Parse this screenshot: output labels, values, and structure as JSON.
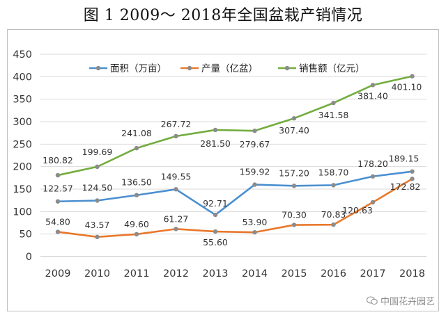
{
  "title": "图 1  2009～ 2018年全国盆栽产销情况",
  "watermark": "中国花卉园艺",
  "chart_data": {
    "type": "line",
    "title": "图 1  2009～ 2018年全国盆栽产销情况",
    "categories": [
      "2009",
      "2010",
      "2011",
      "2012",
      "2013",
      "2014",
      "2015",
      "2016",
      "2017",
      "2018"
    ],
    "ylim": [
      0,
      450
    ],
    "yticks": [
      0,
      50,
      100,
      150,
      200,
      250,
      300,
      350,
      400,
      450
    ],
    "grid": true,
    "legend": "top",
    "series": [
      {
        "name": "面积（万亩）",
        "color": "#4a8fd0",
        "values": [
          122.57,
          124.5,
          136.5,
          149.55,
          92.71,
          159.92,
          157.2,
          158.7,
          178.2,
          189.15
        ],
        "labels": [
          "122.57",
          "124.50",
          "136.50",
          "149.55",
          "92.71",
          "159.92",
          "157.20",
          "158.70",
          "178.20",
          "189.15"
        ]
      },
      {
        "name": "产量（亿盆）",
        "color": "#e9782b",
        "values": [
          54.8,
          43.57,
          49.6,
          61.27,
          55.6,
          53.9,
          70.3,
          70.83,
          120.63,
          172.82
        ],
        "labels": [
          "54.80",
          "43.57",
          "49.60",
          "61.27",
          "55.60",
          "53.90",
          "70.30",
          "70.83",
          "120.63",
          "172.82"
        ]
      },
      {
        "name": "销售额（亿元）",
        "color": "#72ac3e",
        "values": [
          180.82,
          199.69,
          241.08,
          267.72,
          281.5,
          279.67,
          307.4,
          341.58,
          381.4,
          401.1
        ],
        "labels": [
          "180.82",
          "199.69",
          "241.08",
          "267.72",
          "281.50",
          "279.67",
          "307.40",
          "341.58",
          "381.40",
          "401.10"
        ]
      }
    ]
  }
}
